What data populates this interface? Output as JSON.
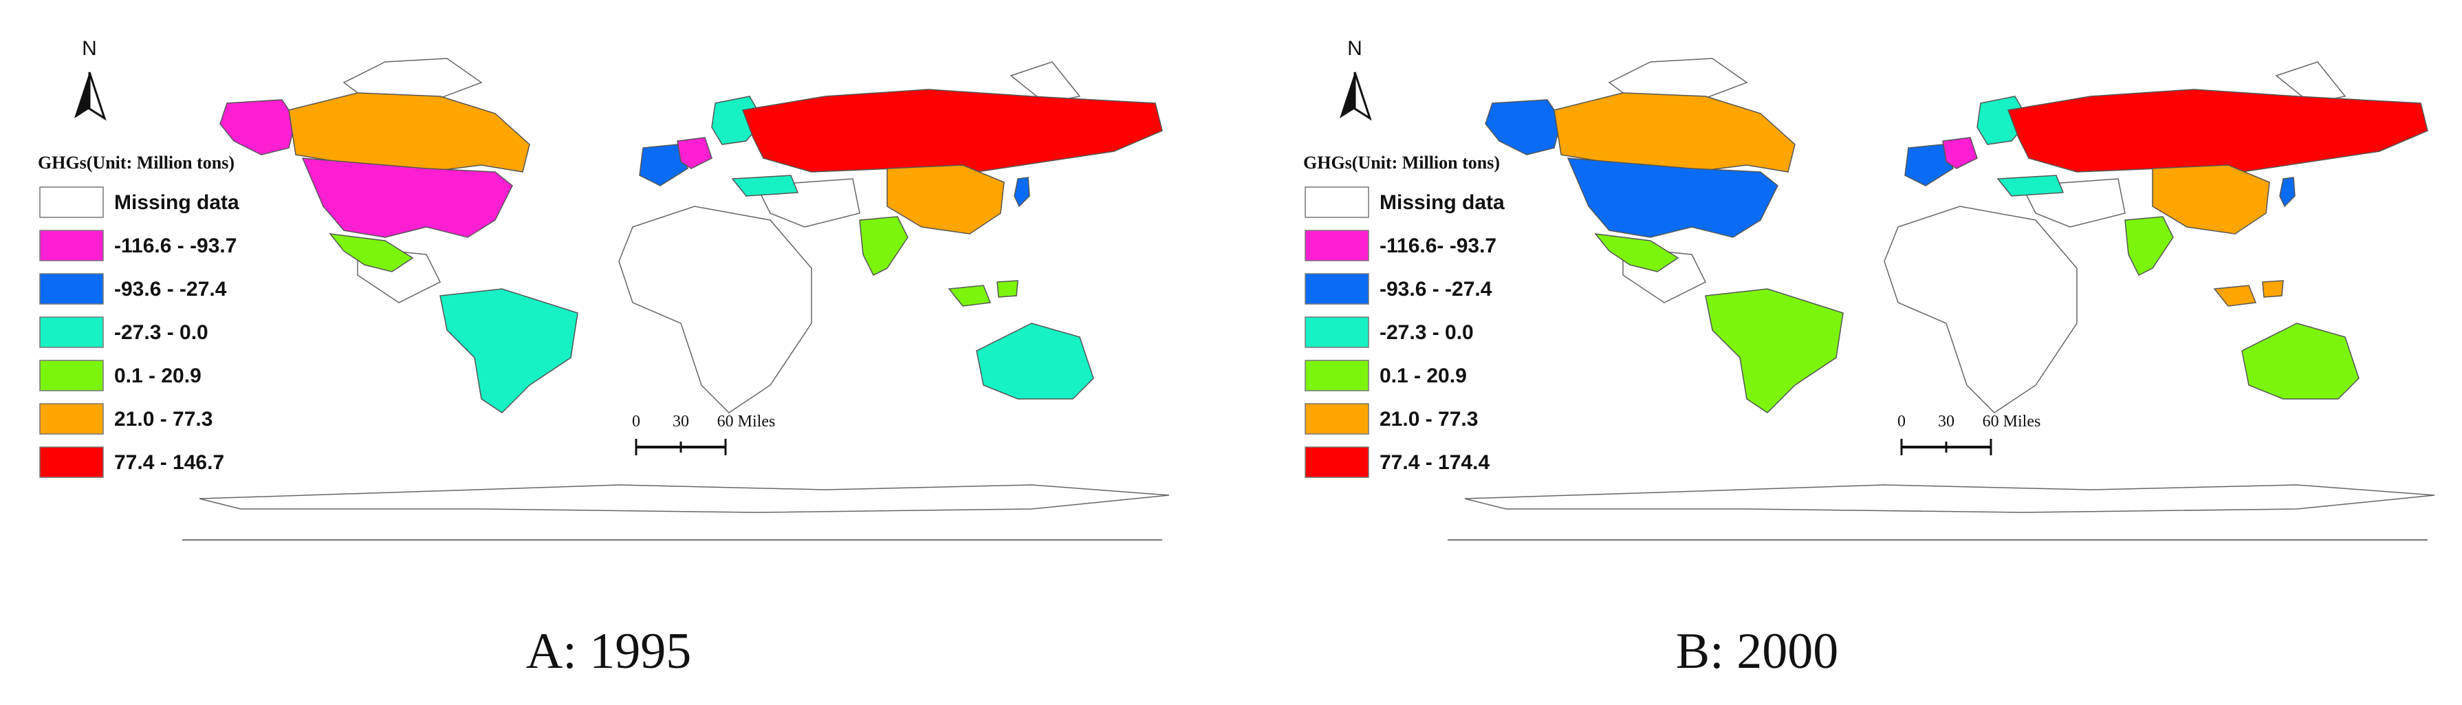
{
  "north_label": "N",
  "panels": [
    {
      "caption": "A: 1995",
      "legend_title": "GHGs(Unit: Million tons)",
      "legend_items": [
        {
          "label": "Missing data",
          "color": "#ffffff"
        },
        {
          "label": "-116.6 - -93.7",
          "color": "#ff1fd2"
        },
        {
          "label": "-93.6 - -27.4",
          "color": "#0a6cf5"
        },
        {
          "label": "-27.3 - 0.0",
          "color": "#16f2c4"
        },
        {
          "label": "0.1 - 20.9",
          "color": "#7cf50c"
        },
        {
          "label": "21.0 - 77.3",
          "color": "#ffa500"
        },
        {
          "label": "77.4 - 146.7",
          "color": "#ff0000"
        }
      ],
      "scale_bar": {
        "ticks": [
          "0",
          "30",
          "60 Miles"
        ]
      },
      "regions": {
        "alaska": "-116.6 - -93.7",
        "canada": "21.0 - 77.3",
        "usa": "-116.6 - -93.7",
        "mexico": "0.1 - 20.9",
        "brazil": "-27.3 - 0.0",
        "russia": "77.4 - 146.7",
        "china": "21.0 - 77.3",
        "india": "0.1 - 20.9",
        "australia": "-27.3 - 0.0",
        "indonesia": "0.1 - 20.9",
        "japan": "-93.6 - -27.4",
        "europe_west": "-93.6 - -27.4",
        "germany": "-116.6 - -93.7",
        "scandinavia": "-27.3 - 0.0",
        "turkey": "-27.3 - 0.0"
      }
    },
    {
      "caption": "B: 2000",
      "legend_title": "GHGs(Unit: Million tons)",
      "legend_items": [
        {
          "label": "Missing data",
          "color": "#ffffff"
        },
        {
          "label": "-116.6- -93.7",
          "color": "#ff1fd2"
        },
        {
          "label": "-93.6 - -27.4",
          "color": "#0a6cf5"
        },
        {
          "label": "-27.3 - 0.0",
          "color": "#16f2c4"
        },
        {
          "label": "0.1 - 20.9",
          "color": "#7cf50c"
        },
        {
          "label": "21.0 - 77.3",
          "color": "#ffa500"
        },
        {
          "label": "77.4 - 174.4",
          "color": "#ff0000"
        }
      ],
      "scale_bar": {
        "ticks": [
          "0",
          "30",
          "60 Miles"
        ]
      },
      "regions": {
        "alaska": "-93.6 - -27.4",
        "canada": "21.0 - 77.3",
        "usa": "-93.6 - -27.4",
        "mexico": "0.1 - 20.9",
        "brazil": "0.1 - 20.9",
        "russia": "77.4 - 174.4",
        "china": "21.0 - 77.3",
        "india": "0.1 - 20.9",
        "australia": "0.1 - 20.9",
        "indonesia": "21.0 - 77.3",
        "japan": "-93.6 - -27.4",
        "europe_west": "-93.6 - -27.4",
        "germany": "-116.6- -93.7",
        "scandinavia": "-27.3 - 0.0",
        "turkey": "-27.3 - 0.0"
      }
    }
  ]
}
